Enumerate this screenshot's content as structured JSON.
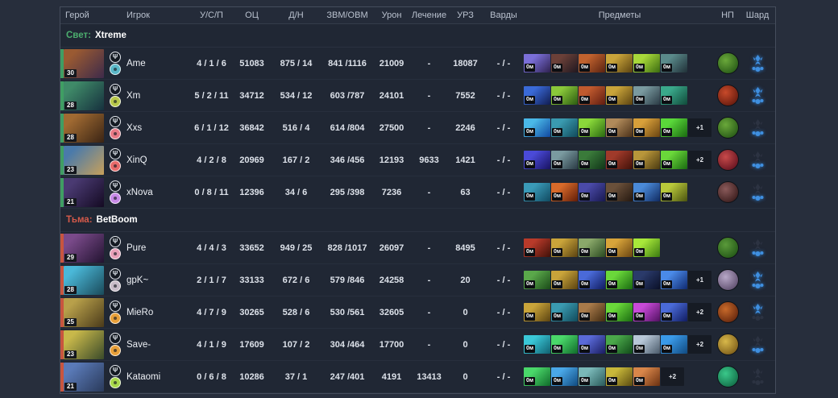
{
  "item_time_label": "0м",
  "columns": {
    "hero": "Герой",
    "player": "Игрок",
    "kda": "У/С/П",
    "net": "ОЦ",
    "dn": "Д/Н",
    "gpm_xpm": "ЗВМ/ОВМ",
    "damage": "Урон",
    "heal": "Лечение",
    "urz": "УРЗ",
    "wards": "Варды",
    "items": "Предметы",
    "np": "НП",
    "shard": "Шард"
  },
  "teams": [
    {
      "side_label": "Свет:",
      "name": "Xtreme",
      "side_color": "#4cae6e",
      "bar_color": "#3f9e63",
      "players": [
        {
          "name": "Ame",
          "level": "30",
          "kda": "4 / 1 / 6",
          "net": "51083",
          "dn": "875 / 14",
          "gpm_xpm": "841 /1116",
          "damage": "21009",
          "heal": "-",
          "urz": "18087",
          "wards": "- / -",
          "extra": "",
          "scepter": true,
          "shard": true,
          "portrait": [
            "#9a5a32",
            "#3d2a4a"
          ],
          "role_color": "#5ab8c8",
          "np": [
            "#6aa83a",
            "#1a4a10"
          ],
          "items": [
            [
              "#7b6fd8",
              "#2e2150"
            ],
            [
              "#6b4038",
              "#201820"
            ],
            [
              "#c0622e",
              "#5a2210"
            ],
            [
              "#c9a43a",
              "#5a4210"
            ],
            [
              "#a8d83a",
              "#3a6a10"
            ],
            [
              "#5a8a8a",
              "#203038"
            ]
          ]
        },
        {
          "name": "Xm",
          "level": "28",
          "kda": "5 / 2 / 11",
          "net": "34712",
          "dn": "534 / 12",
          "gpm_xpm": "603 /787",
          "damage": "24101",
          "heal": "-",
          "urz": "7552",
          "wards": "- / -",
          "extra": "",
          "scepter": true,
          "shard": true,
          "portrait": [
            "#3f8a68",
            "#16303e"
          ],
          "role_color": "#b8c84a",
          "np": [
            "#c84a2a",
            "#501008"
          ],
          "items": [
            [
              "#3a6ad8",
              "#101c50"
            ],
            [
              "#8ac83a",
              "#2a5a10"
            ],
            [
              "#c05a2e",
              "#601c10"
            ],
            [
              "#c9a43a",
              "#5a4210"
            ],
            [
              "#7a9aa0",
              "#2a3a44"
            ],
            [
              "#3aa88a",
              "#104a3a"
            ]
          ]
        },
        {
          "name": "Xxs",
          "level": "28",
          "kda": "6 / 1 / 12",
          "net": "36842",
          "dn": "516 / 4",
          "gpm_xpm": "614 /804",
          "damage": "27500",
          "heal": "-",
          "urz": "2246",
          "wards": "- / -",
          "extra": "+1",
          "scepter": false,
          "shard": true,
          "portrait": [
            "#a06a32",
            "#3a2414"
          ],
          "role_color": "#e87a86",
          "np": [
            "#6aa83a",
            "#1a4a10"
          ],
          "items": [
            [
              "#4ab8e8",
              "#1048a0"
            ],
            [
              "#3a9ab0",
              "#104a5a"
            ],
            [
              "#8ad83a",
              "#2a6a10"
            ],
            [
              "#b08a5a",
              "#4a3018"
            ],
            [
              "#d8a03a",
              "#6a4410"
            ],
            [
              "#5ad83a",
              "#1a6a10"
            ]
          ]
        },
        {
          "name": "XinQ",
          "level": "23",
          "kda": "4 / 2 / 8",
          "net": "20969",
          "dn": "167 / 2",
          "gpm_xpm": "346 /456",
          "damage": "12193",
          "heal": "9633",
          "urz": "1421",
          "wards": "- / -",
          "extra": "+2",
          "scepter": false,
          "shard": true,
          "portrait": [
            "#4a7aaa",
            "#c8a05a"
          ],
          "role_color": "#e86a6a",
          "np": [
            "#c84a4a",
            "#500818"
          ],
          "items": [
            [
              "#4a4ad8",
              "#181260"
            ],
            [
              "#7a9aa0",
              "#2a3a44"
            ],
            [
              "#3a7a3a",
              "#103518"
            ],
            [
              "#a03a2a",
              "#401008"
            ],
            [
              "#b8963a",
              "#4a3a10"
            ],
            [
              "#6ad83a",
              "#1a6a10"
            ]
          ]
        },
        {
          "name": "xNova",
          "level": "21",
          "kda": "0 / 8 / 11",
          "net": "12396",
          "dn": "34 / 6",
          "gpm_xpm": "295 /398",
          "damage": "7236",
          "heal": "-",
          "urz": "63",
          "wards": "- / -",
          "extra": "",
          "scepter": false,
          "shard": true,
          "portrait": [
            "#4a3a72",
            "#140a22"
          ],
          "role_color": "#c88ae8",
          "np": [
            "#8a5a5a",
            "#2a1010"
          ],
          "items": [
            [
              "#3a9ab8",
              "#104a60"
            ],
            [
              "#d86a2a",
              "#601c08"
            ],
            [
              "#4a4aa8",
              "#181850"
            ],
            [
              "#6a503a",
              "#251810"
            ],
            [
              "#4a8ad8",
              "#102a60"
            ],
            [
              "#b8c83a",
              "#4a5210"
            ]
          ]
        }
      ]
    },
    {
      "side_label": "Тьма:",
      "name": "BetBoom",
      "side_color": "#d65a4a",
      "bar_color": "#c8553f",
      "players": [
        {
          "name": "Pure",
          "level": "29",
          "kda": "4 / 4 / 3",
          "net": "33652",
          "dn": "949 / 25",
          "gpm_xpm": "828 /1017",
          "damage": "26097",
          "heal": "-",
          "urz": "8495",
          "wards": "- / -",
          "extra": "",
          "scepter": false,
          "shard": true,
          "portrait": [
            "#7a4a8a",
            "#221330"
          ],
          "role_color": "#e8a0b8",
          "np": [
            "#5a9a3a",
            "#184a10"
          ],
          "items": [
            [
              "#b83a2a",
              "#401008"
            ],
            [
              "#c9a43a",
              "#5a4210"
            ],
            [
              "#8aa86a",
              "#2a4a20"
            ],
            [
              "#d8a43a",
              "#6a4410"
            ],
            [
              "#a8e83a",
              "#3a7a10"
            ]
          ]
        },
        {
          "name": "gpK~",
          "level": "28",
          "kda": "2 / 1 / 7",
          "net": "33133",
          "dn": "672 / 6",
          "gpm_xpm": "579 /846",
          "damage": "24258",
          "heal": "-",
          "urz": "20",
          "wards": "- / -",
          "extra": "+1",
          "scepter": true,
          "shard": true,
          "portrait": [
            "#4ab8d8",
            "#1a4a5a"
          ],
          "role_color": "#c8bcc8",
          "np": [
            "#b8a8c8",
            "#4a3a5a"
          ],
          "items": [
            [
              "#5aa84a",
              "#1a4a18"
            ],
            [
              "#c9a43a",
              "#5a4210"
            ],
            [
              "#4a6ad8",
              "#101c60"
            ],
            [
              "#6ad83a",
              "#1a6a10"
            ],
            [
              "#2a3a6a",
              "#0a1028"
            ],
            [
              "#4a8ae8",
              "#102a70"
            ]
          ]
        },
        {
          "name": "MieRo",
          "level": "25",
          "kda": "4 / 7 / 9",
          "net": "30265",
          "dn": "528 / 6",
          "gpm_xpm": "530 /561",
          "damage": "32605",
          "heal": "-",
          "urz": "0",
          "wards": "- / -",
          "extra": "+2",
          "scepter": true,
          "shard": false,
          "portrait": [
            "#b8a04a",
            "#4a3a1a"
          ],
          "role_color": "#e8a03a",
          "np": [
            "#c86a2a",
            "#501808"
          ],
          "items": [
            [
              "#c9a43a",
              "#5a4210"
            ],
            [
              "#3a9ab0",
              "#104a5a"
            ],
            [
              "#a87a4a",
              "#402a10"
            ],
            [
              "#6ad83a",
              "#1a6a10"
            ],
            [
              "#c84ad8",
              "#501060"
            ],
            [
              "#4a6ad8",
              "#101c60"
            ]
          ]
        },
        {
          "name": "Save-",
          "level": "23",
          "kda": "4 / 1 / 9",
          "net": "17609",
          "dn": "107 / 2",
          "gpm_xpm": "304 /464",
          "damage": "17700",
          "heal": "-",
          "urz": "0",
          "wards": "- / -",
          "extra": "+2",
          "scepter": false,
          "shard": true,
          "portrait": [
            "#c8b84a",
            "#3a4a2a"
          ],
          "role_color": "#e8a03a",
          "np": [
            "#d8b84a",
            "#6a4a10"
          ],
          "items": [
            [
              "#3ac8d8",
              "#106070"
            ],
            [
              "#4ad86a",
              "#106a2a"
            ],
            [
              "#5a6ad8",
              "#1a1c60"
            ],
            [
              "#4aa84a",
              "#104a18"
            ],
            [
              "#b8c8d8",
              "#4a5a6a"
            ],
            [
              "#3a9ae8",
              "#104a80"
            ]
          ]
        },
        {
          "name": "Kataomi",
          "level": "21",
          "kda": "0 / 6 / 8",
          "net": "10286",
          "dn": "37 / 1",
          "gpm_xpm": "247 /401",
          "damage": "4191",
          "heal": "13413",
          "urz": "0",
          "wards": "- / -",
          "extra": "+2",
          "scepter": false,
          "shard": false,
          "portrait": [
            "#5a7ab8",
            "#2a3a5a"
          ],
          "role_color": "#a8d84a",
          "np": [
            "#3ac88a",
            "#0a5a3a"
          ],
          "items": [
            [
              "#4ad86a",
              "#106a2a"
            ],
            [
              "#4aa8e8",
              "#104a80"
            ],
            [
              "#7ab8b8",
              "#2a5a5a"
            ],
            [
              "#c8b83a",
              "#5a4a10"
            ],
            [
              "#d8864a",
              "#6a3010"
            ]
          ]
        }
      ]
    }
  ]
}
